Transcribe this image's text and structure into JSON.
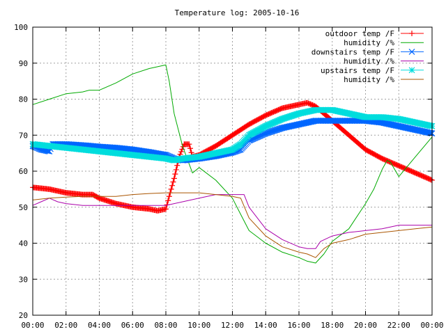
{
  "chart_data": {
    "type": "line",
    "title": "Temperature log: 2005-10-16",
    "xlabel": "",
    "ylabel": "",
    "xlim": [
      0,
      24
    ],
    "ylim": [
      20,
      100
    ],
    "grid": true,
    "legend_position": "top-right",
    "x_tick_labels": [
      "00:00",
      "02:00",
      "04:00",
      "06:00",
      "08:00",
      "10:00",
      "12:00",
      "14:00",
      "16:00",
      "18:00",
      "20:00",
      "22:00",
      "00:00"
    ],
    "y_tick_labels": [
      "20",
      "30",
      "40",
      "50",
      "60",
      "70",
      "80",
      "90",
      "100"
    ],
    "series": [
      {
        "name": "outdoor temp /F",
        "color": "#ff0000",
        "marker": "plus",
        "marker_every": 1,
        "x": [
          0,
          1,
          2,
          3,
          3.6,
          4,
          5,
          6,
          7,
          7.5,
          8,
          8.2,
          8.5,
          8.8,
          9.1,
          9.4,
          9.6,
          10,
          11,
          12,
          13,
          14,
          15,
          16,
          16.5,
          17,
          18,
          19,
          20,
          21,
          22,
          23,
          24
        ],
        "y": [
          55.5,
          55,
          54,
          53.5,
          53.5,
          52.5,
          51,
          50,
          49.5,
          49,
          49.5,
          53,
          58,
          64,
          67.5,
          67.5,
          64,
          64.5,
          67,
          70,
          73,
          75.5,
          77.5,
          78.5,
          79,
          78,
          74,
          70,
          66,
          63.5,
          61.5,
          59.5,
          57.5
        ]
      },
      {
        "name": "humidity /%",
        "color": "#00aa00",
        "marker": "none",
        "x": [
          0,
          1,
          2,
          3,
          3.4,
          4,
          5,
          6,
          7,
          7.5,
          8,
          8.2,
          8.5,
          9,
          9.4,
          9.6,
          10,
          11,
          12,
          12.5,
          13,
          14,
          15,
          16,
          16.5,
          17,
          17.5,
          18,
          19,
          20,
          20.5,
          21,
          21.3,
          21.5,
          22,
          23,
          24
        ],
        "y": [
          78.5,
          80,
          81.5,
          82,
          82.5,
          82.5,
          84.5,
          87,
          88.5,
          89,
          89.5,
          85,
          76,
          67,
          62,
          59.5,
          61,
          57.5,
          52.5,
          48,
          43.5,
          40,
          37.5,
          36,
          35,
          34.5,
          37,
          40.5,
          44,
          51,
          55,
          60.5,
          63,
          62.5,
          58.5,
          64,
          69.5
        ]
      },
      {
        "name": "downstairs temp /F",
        "color": "#0066ff",
        "marker": "x",
        "marker_every": 1,
        "x": [
          0,
          0.5,
          1,
          1.2,
          2,
          3,
          4,
          5,
          6,
          7,
          8,
          8.5,
          9,
          10,
          11,
          12,
          12.5,
          13,
          14,
          15,
          16,
          17,
          18,
          19,
          20,
          21,
          22,
          23,
          24
        ],
        "y": [
          67,
          66,
          65.5,
          67.5,
          67.5,
          67.2,
          66.8,
          66.5,
          66,
          65.3,
          64.5,
          63.5,
          63,
          63.5,
          64.2,
          65.2,
          66,
          68.5,
          70.5,
          72,
          73,
          74,
          74,
          74,
          74,
          73.5,
          72.5,
          71.5,
          70.5
        ]
      },
      {
        "name": "humidity /%",
        "color": "#aa00aa",
        "marker": "none",
        "x": [
          0,
          0.5,
          1,
          1.5,
          2,
          3,
          4,
          5,
          6,
          7,
          8,
          8.5,
          9,
          10,
          11,
          12,
          12.7,
          13,
          14,
          15,
          16,
          16.5,
          17,
          17.3,
          18,
          19,
          20,
          21,
          22,
          23,
          24
        ],
        "y": [
          50.5,
          51.5,
          52.5,
          51.5,
          51,
          50.5,
          50.5,
          50.5,
          50.5,
          50.5,
          50.5,
          51,
          51.5,
          52.5,
          53.5,
          53.5,
          53.5,
          50,
          44,
          41,
          39,
          38.5,
          38.5,
          40.5,
          42,
          43,
          43.5,
          44,
          45,
          45,
          45
        ]
      },
      {
        "name": "upstairs temp /F",
        "color": "#00dddd",
        "marker": "star",
        "marker_every": 1,
        "x": [
          0,
          1,
          2,
          3,
          4,
          5,
          6,
          7,
          8,
          8.5,
          9,
          10,
          11,
          12,
          12.5,
          13,
          14,
          15,
          16,
          16.5,
          17,
          18,
          19,
          20,
          21,
          22,
          23,
          24
        ],
        "y": [
          67.5,
          67,
          66.5,
          66,
          65.5,
          65,
          64.5,
          64,
          63.5,
          63,
          63.5,
          64,
          65,
          66,
          67.5,
          70,
          72.5,
          74.5,
          76,
          76.5,
          77,
          77,
          76,
          75,
          75,
          74.5,
          73.5,
          72.5
        ]
      },
      {
        "name": "humidity /%",
        "color": "#aa5500",
        "marker": "none",
        "x": [
          0,
          1,
          2,
          3,
          4,
          5,
          6,
          7,
          8,
          9,
          9.5,
          10,
          11,
          12,
          12.5,
          13,
          14,
          15,
          16,
          16.5,
          17,
          17.5,
          18,
          19,
          20,
          21,
          22,
          23,
          24
        ],
        "y": [
          52,
          52.5,
          52.8,
          53,
          53,
          53,
          53.5,
          53.8,
          54,
          54,
          54,
          54,
          53.5,
          53,
          52.5,
          47,
          42,
          39,
          37.5,
          37,
          36,
          38.5,
          40,
          41,
          42.5,
          43,
          43.5,
          44,
          44.5
        ]
      }
    ]
  }
}
